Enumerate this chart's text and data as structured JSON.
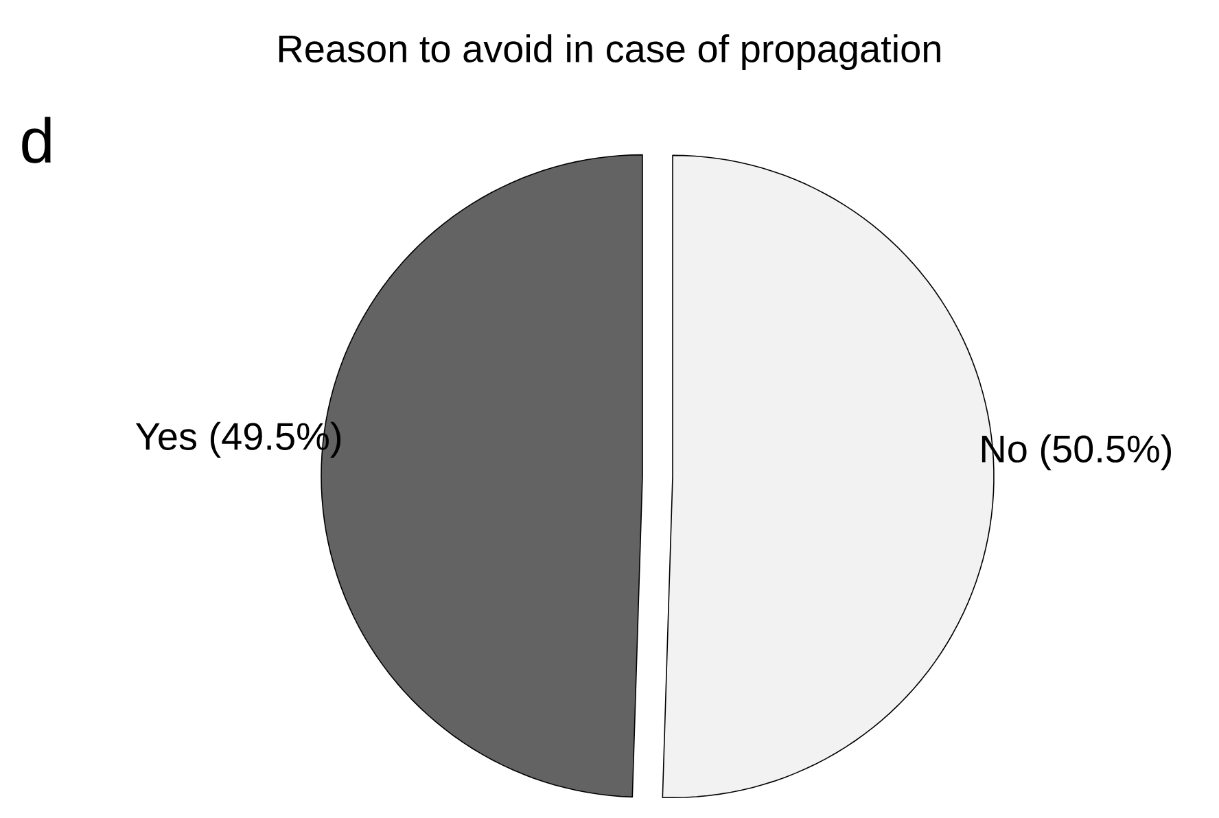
{
  "chart_data": {
    "type": "pie",
    "title": "Reason to avoid in case of propagation",
    "annotations": [
      "d"
    ],
    "categories": [
      "Yes (49.5%)",
      "No (50.5%)"
    ],
    "values": [
      49.5,
      50.5
    ],
    "colors": [
      "#636363",
      "#f2f2f2"
    ]
  }
}
